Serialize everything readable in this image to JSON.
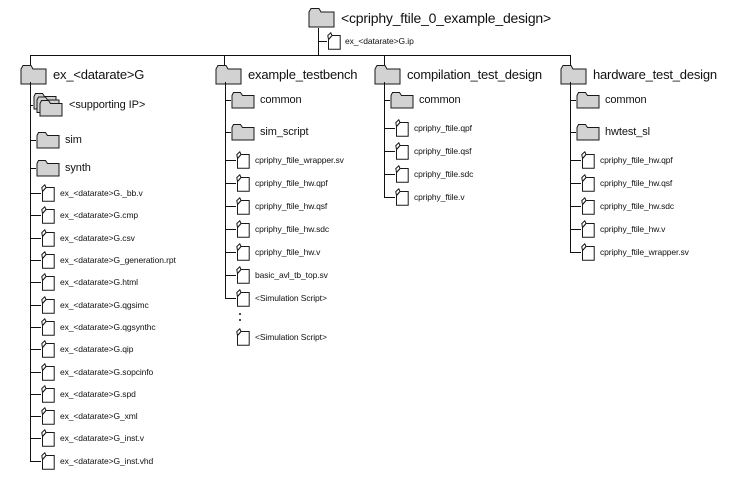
{
  "root": {
    "label": "<cpriphy_ftile_0_example_design>",
    "file": "ex_<datarate>G.ip"
  },
  "columns": [
    {
      "label": "ex_<datarate>G",
      "items": [
        {
          "type": "stack",
          "label": "<supporting IP>"
        },
        {
          "type": "folder",
          "label": "sim"
        },
        {
          "type": "folder",
          "label": "synth"
        },
        {
          "type": "file",
          "label": "ex_<datarate>G._bb.v"
        },
        {
          "type": "file",
          "label": "ex_<datarate>G.cmp"
        },
        {
          "type": "file",
          "label": "ex_<datarate>G.csv"
        },
        {
          "type": "file",
          "label": "ex_<datarate>G_generation.rpt"
        },
        {
          "type": "file",
          "label": "ex_<datarate>G.html"
        },
        {
          "type": "file",
          "label": "ex_<datarate>G.qgsimc"
        },
        {
          "type": "file",
          "label": "ex_<datarate>G.qgsynthc"
        },
        {
          "type": "file",
          "label": "ex_<datarate>G.qip"
        },
        {
          "type": "file",
          "label": "ex_<datarate>G.sopcinfo"
        },
        {
          "type": "file",
          "label": "ex_<datarate>G.spd"
        },
        {
          "type": "file",
          "label": "ex_<datarate>G_xml"
        },
        {
          "type": "file",
          "label": "ex_<datarate>G_inst.v"
        },
        {
          "type": "file",
          "label": "ex_<datarate>G_inst.vhd"
        }
      ]
    },
    {
      "label": "example_testbench",
      "items": [
        {
          "type": "folder",
          "label": "common"
        },
        {
          "type": "folder",
          "label": "sim_script"
        },
        {
          "type": "file",
          "label": "cpriphy_ftile_wrapper.sv"
        },
        {
          "type": "file",
          "label": "cpriphy_ftile_hw.qpf"
        },
        {
          "type": "file",
          "label": "cpriphy_ftile_hw.qsf"
        },
        {
          "type": "file",
          "label": "cpriphy_ftile_hw.sdc"
        },
        {
          "type": "file",
          "label": "cpriphy_ftile_hw.v"
        },
        {
          "type": "file",
          "label": "basic_avl_tb_top.sv"
        },
        {
          "type": "file",
          "label": "<Simulation Script>"
        },
        {
          "type": "dots",
          "label": ""
        },
        {
          "type": "file-loose",
          "label": "<Simulation Script>"
        }
      ]
    },
    {
      "label": "compilation_test_design",
      "items": [
        {
          "type": "folder",
          "label": "common"
        },
        {
          "type": "file",
          "label": "cpriphy_ftile.qpf"
        },
        {
          "type": "file",
          "label": "cpriphy_ftile.qsf"
        },
        {
          "type": "file",
          "label": "cpriphy_ftile.sdc"
        },
        {
          "type": "file",
          "label": "cpriphy_ftile.v"
        }
      ]
    },
    {
      "label": "hardware_test_design",
      "items": [
        {
          "type": "folder",
          "label": "common"
        },
        {
          "type": "folder",
          "label": "hwtest_sl"
        },
        {
          "type": "file",
          "label": "cpriphy_ftile_hw.qpf"
        },
        {
          "type": "file",
          "label": "cpriphy_ftile_hw.qsf"
        },
        {
          "type": "file",
          "label": "cpriphy_ftile_hw.sdc"
        },
        {
          "type": "file",
          "label": "cpriphy_ftile_hw.v"
        },
        {
          "type": "file",
          "label": "cpriphy_ftile_wrapper.sv"
        }
      ]
    }
  ],
  "colors": {
    "folder_fill": "#d2d2d2",
    "file_fill": "#ffffff",
    "line": "#111111"
  }
}
